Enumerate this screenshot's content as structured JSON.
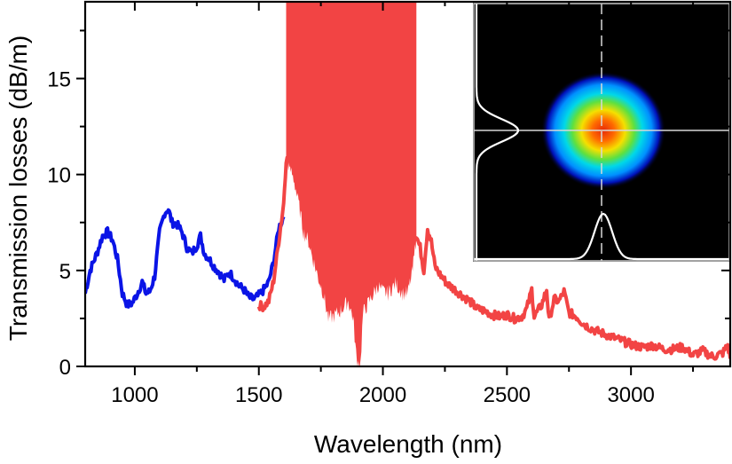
{
  "chart_data": {
    "type": "line",
    "title": "",
    "xlabel": "Wavelength (nm)",
    "ylabel": "Transmission losses (dB/m)",
    "xlim": [
      800,
      3400
    ],
    "ylim": [
      0,
      19
    ],
    "x_major_ticks": [
      1000,
      1500,
      2000,
      2500,
      3000
    ],
    "x_tick_labels": [
      "1000",
      "1500",
      "2000",
      "2500",
      "3000"
    ],
    "x_minor_ticks": [
      1250,
      1750,
      2250,
      2750,
      3250
    ],
    "y_major_ticks": [
      0,
      5,
      10,
      15
    ],
    "y_tick_labels": [
      "0",
      "5",
      "10",
      "15"
    ],
    "y_minor_ticks": [
      2.5,
      7.5,
      12.5,
      17.5
    ],
    "grid": false,
    "legend": "none",
    "series": [
      {
        "name": "blue-spectrum",
        "color": "#0a14e6",
        "x": [
          800,
          820,
          850,
          870,
          890,
          910,
          930,
          950,
          970,
          990,
          1010,
          1030,
          1045,
          1060,
          1080,
          1100,
          1120,
          1135,
          1150,
          1170,
          1190,
          1210,
          1230,
          1250,
          1265,
          1280,
          1300,
          1320,
          1340,
          1360,
          1380,
          1400,
          1420,
          1440,
          1460,
          1480,
          1500,
          1520,
          1540,
          1560,
          1580,
          1600
        ],
        "values": [
          3.8,
          5.0,
          6.0,
          6.8,
          7.0,
          6.6,
          5.6,
          3.8,
          3.2,
          3.3,
          3.8,
          4.4,
          3.8,
          3.9,
          4.7,
          7.0,
          8.0,
          8.2,
          7.5,
          7.4,
          7.0,
          6.2,
          5.9,
          6.3,
          6.8,
          5.9,
          5.6,
          5.2,
          4.9,
          4.5,
          4.9,
          4.6,
          4.2,
          4.0,
          3.6,
          3.5,
          3.7,
          4.0,
          4.4,
          5.5,
          7.2,
          7.8
        ]
      },
      {
        "name": "red-spectrum",
        "color": "#f24444",
        "x": [
          1500,
          1520,
          1540,
          1560,
          1580,
          1600,
          1610,
          2135,
          2150,
          2165,
          2180,
          2195,
          2210,
          2230,
          2260,
          2290,
          2320,
          2350,
          2380,
          2410,
          2440,
          2470,
          2500,
          2530,
          2560,
          2580,
          2600,
          2610,
          2640,
          2660,
          2670,
          2690,
          2710,
          2730,
          2750,
          2780,
          2810,
          2850,
          2890,
          2930,
          2970,
          3010,
          3050,
          3090,
          3130,
          3170,
          3210,
          3250,
          3290,
          3330,
          3370,
          3390,
          3400
        ],
        "values": [
          3.2,
          3.1,
          3.4,
          4.5,
          6.5,
          8.5,
          10.8,
          6.8,
          6.2,
          5.0,
          7.2,
          6.5,
          5.2,
          4.8,
          4.3,
          4.0,
          3.7,
          3.4,
          3.0,
          2.9,
          2.7,
          2.6,
          2.7,
          2.5,
          2.6,
          3.0,
          4.0,
          2.6,
          3.2,
          4.0,
          2.4,
          3.5,
          3.4,
          3.9,
          2.8,
          2.6,
          2.2,
          1.9,
          1.7,
          1.5,
          1.3,
          1.1,
          1.0,
          1.1,
          0.9,
          0.9,
          1.0,
          0.6,
          0.8,
          0.5,
          0.7,
          1.1,
          0.4
        ]
      },
      {
        "name": "red-oscillation-band",
        "color": "#f24444",
        "type": "area",
        "upper": 19,
        "x": [
          1610,
          1640,
          1660,
          1680,
          1700,
          1720,
          1740,
          1760,
          1780,
          1800,
          1830,
          1860,
          1880,
          1895,
          1910,
          1920,
          1950,
          1980,
          2000,
          2020,
          2050,
          2080,
          2100,
          2120,
          2135
        ],
        "lower": [
          10.8,
          9.8,
          8.5,
          7.0,
          6.5,
          5.5,
          4.6,
          3.8,
          2.5,
          2.6,
          2.9,
          3.4,
          2.5,
          0.2,
          0.2,
          2.8,
          3.5,
          4.2,
          3.9,
          3.8,
          4.3,
          3.8,
          3.8,
          5.0,
          6.8
        ]
      }
    ],
    "inset": {
      "description": "Near-field mode profile image with horizontal and vertical intensity cross-section curves",
      "colormap": [
        "#000010",
        "#0000c8",
        "#00a0ff",
        "#00e0e0",
        "#40e040",
        "#f0f000",
        "#ff8000",
        "#e02000"
      ],
      "background": "#000000",
      "profile_color": "#ffffff"
    }
  }
}
